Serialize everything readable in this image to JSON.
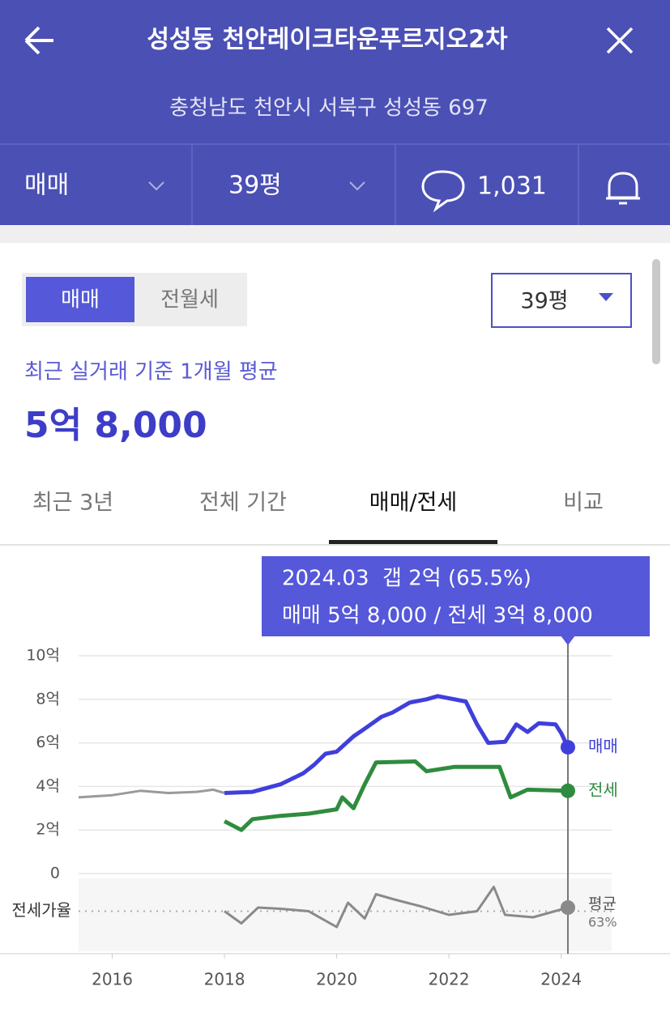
{
  "header": {
    "title": "성성동 천안레이크타운푸르지오2차",
    "address": "충청남도 천안시 서북구 성성동 697"
  },
  "toolbar": {
    "trade_type": "매매",
    "size": "39평",
    "comments": "1,031"
  },
  "filters": {
    "toggle": [
      "매매",
      "전월세"
    ],
    "size": "39평"
  },
  "summary": {
    "caption": "최근 실거래 기준 1개월 평균",
    "price": "5억 8,000"
  },
  "tabs": [
    "최근 3년",
    "전체 기간",
    "매매/전세",
    "비교"
  ],
  "tooltip": {
    "line1": "2024.03  갭 2억 (65.5%)",
    "line2": "매매 5억 8,000 / 전세 3억 8,000"
  },
  "chart_data": [
    {
      "type": "line",
      "xlim": [
        2015.4,
        2024.9
      ],
      "xticks": [
        2016,
        2018,
        2020,
        2022,
        2024
      ],
      "ylim": [
        0,
        10
      ],
      "yticks": [
        0,
        {
          "value": 2,
          "label": "2억"
        },
        {
          "value": 4,
          "label": "4억"
        },
        {
          "value": 6,
          "label": "6억"
        },
        {
          "value": 8,
          "label": "8억"
        },
        {
          "value": 10,
          "label": "10억"
        }
      ],
      "grid": true,
      "series": [
        {
          "color": "#9a9a9a",
          "x": [
            2015.4,
            2016,
            2016.5,
            2017,
            2017.5,
            2017.8,
            2018
          ],
          "values": [
            3.5,
            3.6,
            3.8,
            3.7,
            3.75,
            3.85,
            3.7
          ]
        },
        {
          "name": "매매",
          "color": "#3f3fdc",
          "x": [
            2018,
            2018.5,
            2019,
            2019.4,
            2019.6,
            2019.8,
            2020,
            2020.3,
            2020.5,
            2020.8,
            2021,
            2021.3,
            2021.6,
            2021.8,
            2022.3,
            2022.5,
            2022.7,
            2023,
            2023.2,
            2023.4,
            2023.6,
            2023.9,
            2024,
            2024.12
          ],
          "values": [
            3.7,
            3.75,
            4.1,
            4.6,
            5.0,
            5.5,
            5.6,
            6.3,
            6.65,
            7.2,
            7.4,
            7.85,
            8.0,
            8.15,
            7.9,
            6.85,
            6.0,
            6.05,
            6.85,
            6.5,
            6.9,
            6.85,
            6.45,
            5.8
          ]
        },
        {
          "name": "전세",
          "color": "#2f8c3f",
          "x": [
            2018,
            2018.3,
            2018.5,
            2019,
            2019.5,
            2020,
            2020.1,
            2020.3,
            2020.5,
            2020.7,
            2021.4,
            2021.6,
            2022.1,
            2022.9,
            2023.1,
            2023.4,
            2024.12
          ],
          "values": [
            2.4,
            2.0,
            2.5,
            2.65,
            2.75,
            2.95,
            3.5,
            3.0,
            4.1,
            5.1,
            5.15,
            4.7,
            4.9,
            4.9,
            3.5,
            3.85,
            3.8
          ]
        }
      ]
    },
    {
      "type": "line",
      "title": "전세가율",
      "ylim": [
        30,
        90
      ],
      "series": [
        {
          "color": "#8a8a8a",
          "x": [
            2018,
            2018.3,
            2018.6,
            2019,
            2019.5,
            2020,
            2020.2,
            2020.5,
            2020.7,
            2021,
            2021.5,
            2022,
            2022.5,
            2022.8,
            2023,
            2023.5,
            2024.12
          ],
          "values": [
            63,
            53,
            66,
            65,
            63,
            50,
            70,
            57,
            77,
            73,
            67,
            60,
            63,
            83,
            60,
            58,
            66
          ]
        }
      ],
      "average_name": "평균",
      "average": {
        "value": 63,
        "label": "63%"
      }
    }
  ]
}
